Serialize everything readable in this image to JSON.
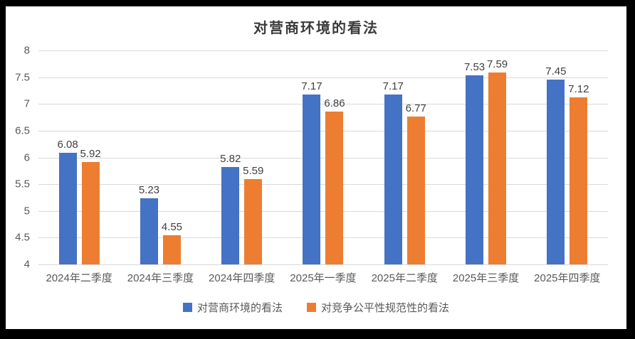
{
  "frame": {
    "border_color": "#000000",
    "background": "#ffffff"
  },
  "chart_data": {
    "type": "bar",
    "title": "对营商环境的看法",
    "categories": [
      "2024年二季度",
      "2024年三季度",
      "2024年四季度",
      "2025年一季度",
      "2025年二季度",
      "2025年三季度",
      "2025年四季度"
    ],
    "series": [
      {
        "name": "对营商环境的看法",
        "color": "#4472C4",
        "values": [
          6.08,
          5.23,
          5.82,
          7.17,
          7.17,
          7.53,
          7.45
        ]
      },
      {
        "name": "对竞争公平性规范性的看法",
        "color": "#ED7D31",
        "values": [
          5.92,
          4.55,
          5.59,
          6.86,
          6.77,
          7.59,
          7.12
        ]
      }
    ],
    "ylim": [
      4,
      8
    ],
    "y_tick_step": 0.5,
    "y_tick_labels": [
      "8",
      "7.5",
      "7",
      "6.5",
      "6",
      "5.5",
      "5",
      "4.5",
      "4"
    ],
    "xlabel": "",
    "ylabel": "",
    "grid": true,
    "data_labels": true,
    "legend_position": "bottom"
  },
  "style": {
    "gridline_color": "#d9d9d9",
    "axis_text_color": "#595959",
    "data_label_color": "#404040",
    "title_color": "#3b3b3b"
  }
}
